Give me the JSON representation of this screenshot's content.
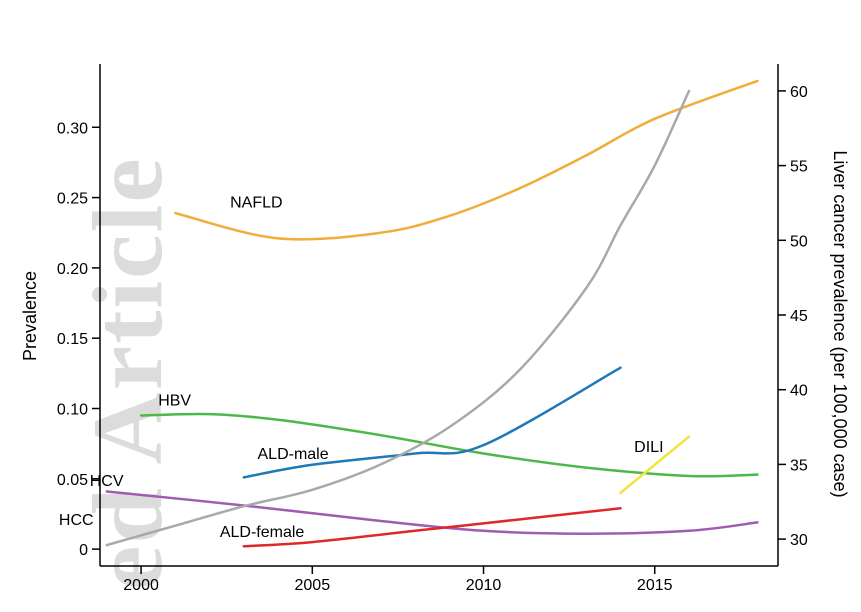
{
  "watermark_text": "ed Article",
  "chart_data": {
    "type": "line",
    "ylabel": "Prevalence",
    "y2label": "Liver cancer prevalence (per 100,000 case)",
    "xlim": [
      1998.8,
      2018.6
    ],
    "ylim": [
      -0.012,
      0.345
    ],
    "y2lim": [
      28.2,
      61.8
    ],
    "x_ticks": [
      2000,
      2005,
      2010,
      2015
    ],
    "x_tick_labels": [
      "2000",
      "2005",
      "2010",
      "2015"
    ],
    "y_ticks": [
      0,
      0.05,
      0.1,
      0.15,
      0.2,
      0.25,
      0.3
    ],
    "y_tick_labels": [
      "0",
      "0.05",
      "0.10",
      "0.15",
      "0.20",
      "0.25",
      "0.30"
    ],
    "y2_ticks": [
      30,
      35,
      40,
      45,
      50,
      55,
      60
    ],
    "y2_tick_labels": [
      "30",
      "35",
      "40",
      "45",
      "50",
      "55",
      "60"
    ],
    "series": [
      {
        "name": "NAFLD",
        "axis": "left",
        "color": "#f0ad3a",
        "x": [
          2001,
          2004,
          2007,
          2009,
          2011,
          2013,
          2015,
          2018
        ],
        "y": [
          0.239,
          0.221,
          0.225,
          0.237,
          0.256,
          0.28,
          0.306,
          0.333
        ],
        "label_x": 2002.6,
        "label_y": 0.243
      },
      {
        "name": "HBV",
        "axis": "left",
        "color": "#4db848",
        "x": [
          2000,
          2002,
          2004,
          2007,
          2010,
          2013,
          2016,
          2018
        ],
        "y": [
          0.095,
          0.096,
          0.092,
          0.081,
          0.068,
          0.058,
          0.052,
          0.053
        ],
        "label_x": 2000.5,
        "label_y": 0.102
      },
      {
        "name": "HCV",
        "axis": "left",
        "color": "#a05cb0",
        "x": [
          1999,
          2003,
          2007,
          2010,
          2013,
          2016,
          2018
        ],
        "y": [
          0.041,
          0.031,
          0.02,
          0.013,
          0.011,
          0.013,
          0.019
        ],
        "label_x": 1998.5,
        "label_y": 0.045
      },
      {
        "name": "ALD-male",
        "axis": "left",
        "color": "#1f78b8",
        "x": [
          2003,
          2005,
          2008,
          2010,
          2014
        ],
        "y": [
          0.051,
          0.06,
          0.068,
          0.074,
          0.129
        ],
        "label_x": 2003.4,
        "label_y": 0.064
      },
      {
        "name": "ALD-female",
        "axis": "left",
        "color": "#e0282a",
        "x": [
          2003,
          2005,
          2008,
          2011,
          2014
        ],
        "y": [
          0.002,
          0.005,
          0.013,
          0.021,
          0.029
        ],
        "label_x": 2002.3,
        "label_y": 0.0085
      },
      {
        "name": "DILI",
        "axis": "left",
        "color": "#f2e33e",
        "x": [
          2014,
          2016
        ],
        "y": [
          0.04,
          0.08
        ],
        "label_x": 2014.4,
        "label_y": 0.069
      },
      {
        "name": "HCC",
        "axis": "right",
        "color": "#a9a9a9",
        "x": [
          1999,
          2001,
          2003,
          2005,
          2007,
          2009,
          2011,
          2013,
          2014,
          2015,
          2016
        ],
        "y": [
          29.6,
          30.9,
          32.2,
          33.3,
          35.0,
          37.5,
          41.2,
          46.8,
          51.0,
          55.0,
          60.0
        ],
        "label_x": 1997.6,
        "label_y": 0.017
      }
    ]
  }
}
